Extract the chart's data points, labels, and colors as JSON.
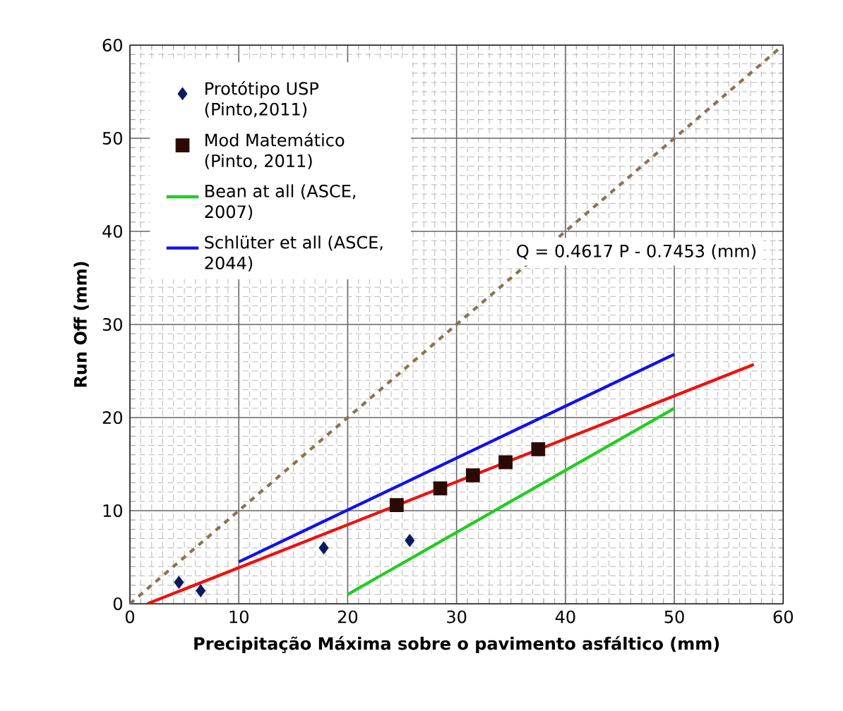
{
  "chart_data": {
    "type": "scatter",
    "xlabel": "Precipitação Máxima sobre o pavimento asfáltico (mm)",
    "ylabel": "Run Off (mm)",
    "xlim": [
      0,
      60
    ],
    "ylim": [
      0,
      60
    ],
    "xticks": [
      0,
      10,
      20,
      30,
      40,
      50,
      60
    ],
    "yticks": [
      0,
      10,
      20,
      30,
      40,
      50,
      60
    ],
    "grid": true,
    "legend": "top left",
    "annotations": [
      "Q = 0.4617 P - 0.7453 (mm)"
    ],
    "series": [
      {
        "name": "Protótipo USP (Pinto,2011)",
        "marker": "diamond",
        "color": "#0d1a5c",
        "x": [
          4.5,
          6.5,
          17.8,
          25.7
        ],
        "values": [
          2.3,
          1.4,
          6.0,
          6.8
        ]
      },
      {
        "name": "Mod Matemático (Pinto, 2011)",
        "marker": "square",
        "color": "#2b0a05",
        "x": [
          24.5,
          28.5,
          31.5,
          34.5,
          37.5
        ],
        "values": [
          10.6,
          12.4,
          13.8,
          15.2,
          16.6
        ]
      },
      {
        "name": "Bean at all (ASCE, 2007)",
        "type": "line",
        "marker": "none",
        "line_style": "solid",
        "color": "#22cc22",
        "x": [
          20,
          50
        ],
        "values": [
          1,
          21
        ]
      },
      {
        "name": "Schlüter et all (ASCE, 2044)",
        "type": "line",
        "marker": "none",
        "line_style": "solid",
        "color": "#1010ee",
        "x": [
          10,
          50
        ],
        "values": [
          4.5,
          26.8
        ]
      },
      {
        "type": "line",
        "marker": "none",
        "line_style": "solid",
        "color": "#ee1111",
        "x": [
          1.6,
          57.3
        ],
        "values": [
          0,
          25.7
        ]
      },
      {
        "type": "line",
        "marker": "none",
        "line_style": "dashed",
        "color": "#8b7355",
        "x": [
          0,
          60
        ],
        "values": [
          0,
          60
        ]
      }
    ]
  }
}
